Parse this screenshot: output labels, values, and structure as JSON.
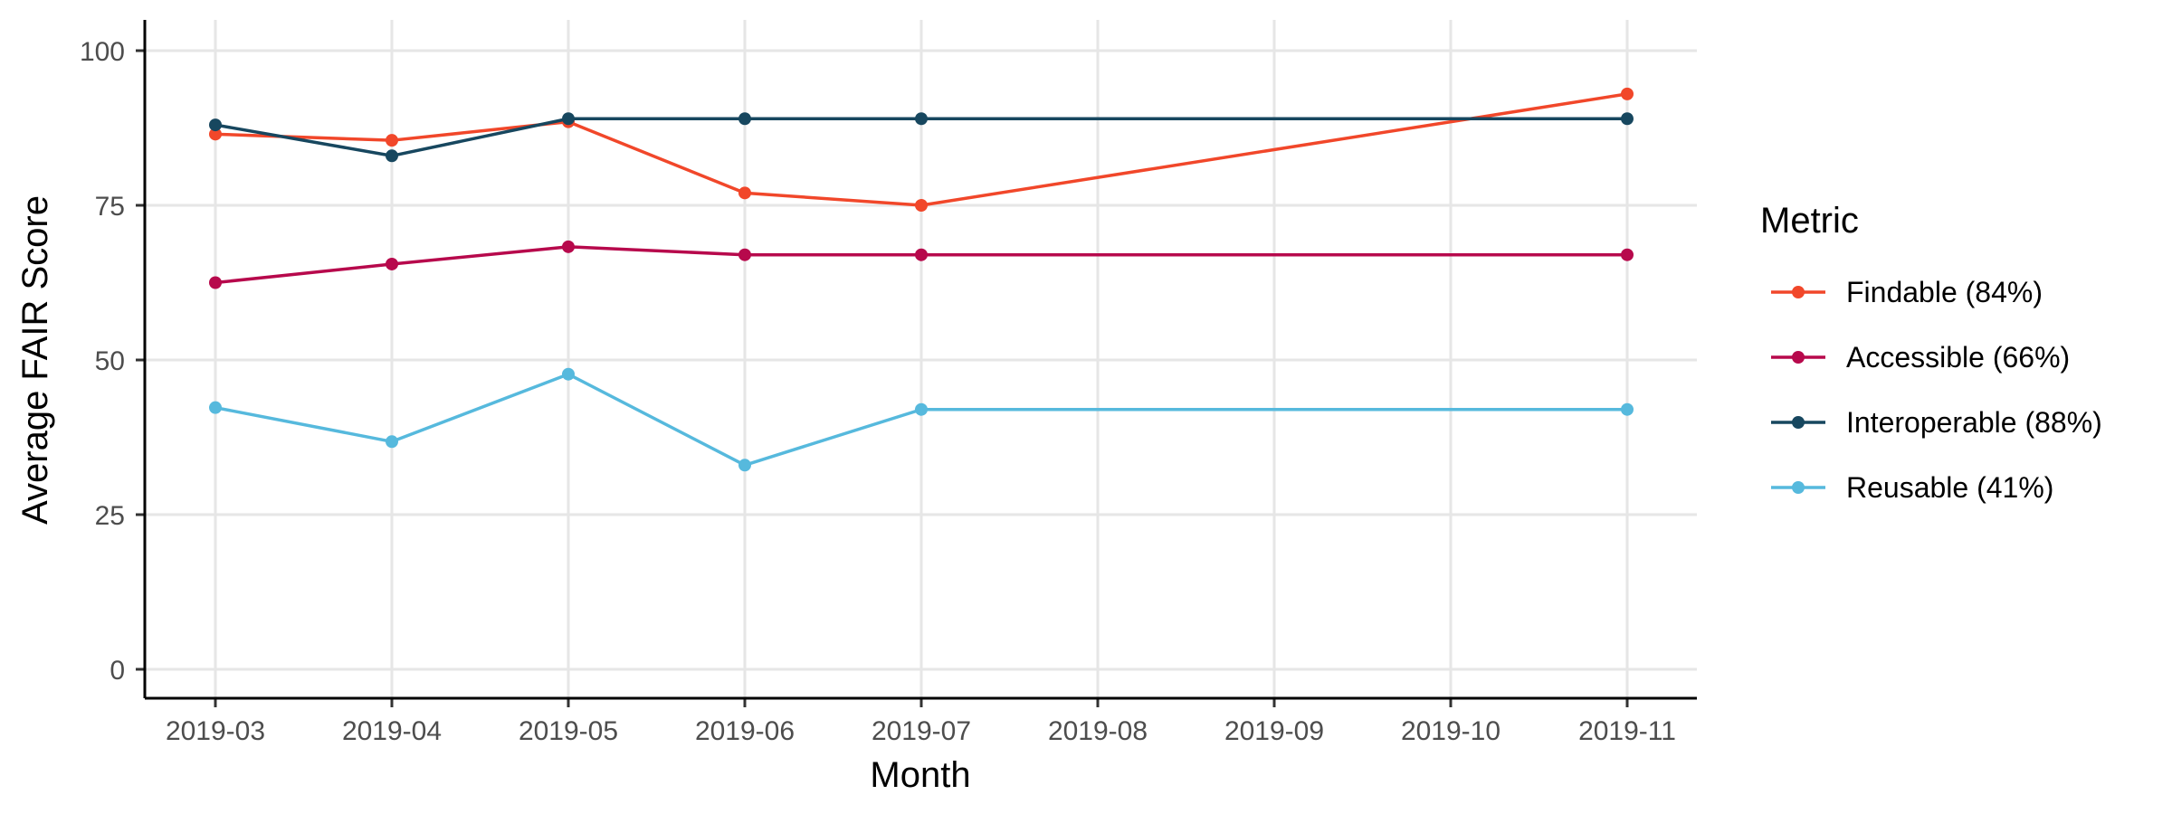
{
  "chart_data": {
    "type": "line",
    "xlabel": "Month",
    "ylabel": "Average FAIR Score",
    "ylim": [
      0,
      100
    ],
    "yticks": [
      0,
      25,
      50,
      75,
      100
    ],
    "x_ticks": [
      "2019-03",
      "2019-04",
      "2019-05",
      "2019-06",
      "2019-07",
      "2019-08",
      "2019-09",
      "2019-10",
      "2019-11"
    ],
    "grid": true,
    "legend": {
      "title": "Metric",
      "placement": "right"
    },
    "series": [
      {
        "name": "Findable (84%)",
        "color": "#f1472a",
        "points": [
          {
            "x": "2019-03",
            "y": 86.5
          },
          {
            "x": "2019-04",
            "y": 85.5
          },
          {
            "x": "2019-05",
            "y": 88.5
          },
          {
            "x": "2019-06",
            "y": 77
          },
          {
            "x": "2019-07",
            "y": 75
          },
          {
            "x": "2019-11",
            "y": 93
          }
        ]
      },
      {
        "name": "Accessible (66%)",
        "color": "#b7094c",
        "points": [
          {
            "x": "2019-03",
            "y": 62.5
          },
          {
            "x": "2019-04",
            "y": 65.5
          },
          {
            "x": "2019-05",
            "y": 68.3
          },
          {
            "x": "2019-06",
            "y": 67
          },
          {
            "x": "2019-07",
            "y": 67
          },
          {
            "x": "2019-11",
            "y": 67
          }
        ]
      },
      {
        "name": "Interoperable (88%)",
        "color": "#17475f",
        "points": [
          {
            "x": "2019-03",
            "y": 88
          },
          {
            "x": "2019-04",
            "y": 83
          },
          {
            "x": "2019-05",
            "y": 89
          },
          {
            "x": "2019-06",
            "y": 89
          },
          {
            "x": "2019-07",
            "y": 89
          },
          {
            "x": "2019-11",
            "y": 89
          }
        ]
      },
      {
        "name": "Reusable (41%)",
        "color": "#56b9dd",
        "points": [
          {
            "x": "2019-03",
            "y": 42.3
          },
          {
            "x": "2019-04",
            "y": 36.8
          },
          {
            "x": "2019-05",
            "y": 47.7
          },
          {
            "x": "2019-06",
            "y": 33
          },
          {
            "x": "2019-07",
            "y": 42
          },
          {
            "x": "2019-11",
            "y": 42
          }
        ]
      }
    ]
  }
}
